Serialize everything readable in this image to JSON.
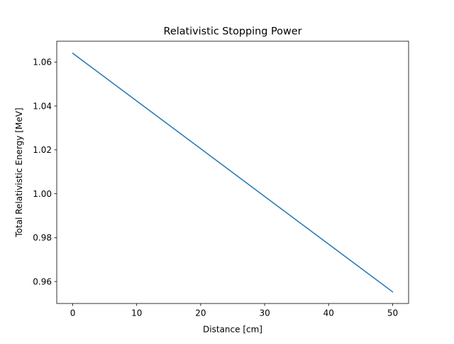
{
  "chart_data": {
    "type": "line",
    "title": "Relativistic Stopping Power",
    "xlabel": "Distance [cm]",
    "ylabel": "Total Relativistic Energy [MeV]",
    "xlim": [
      -2.5,
      52.5
    ],
    "ylim": [
      0.95,
      1.0695
    ],
    "xticks": [
      0,
      10,
      20,
      30,
      40,
      50
    ],
    "xtick_labels": [
      "0",
      "10",
      "20",
      "30",
      "40",
      "50"
    ],
    "yticks": [
      0.96,
      0.98,
      1.0,
      1.02,
      1.04,
      1.06
    ],
    "ytick_labels": [
      "0.96",
      "0.98",
      "1.00",
      "1.02",
      "1.04",
      "1.06"
    ],
    "grid": false,
    "series": [
      {
        "color": "#1f77b4",
        "x": [
          0,
          50
        ],
        "y": [
          1.064,
          0.9553
        ]
      }
    ]
  }
}
